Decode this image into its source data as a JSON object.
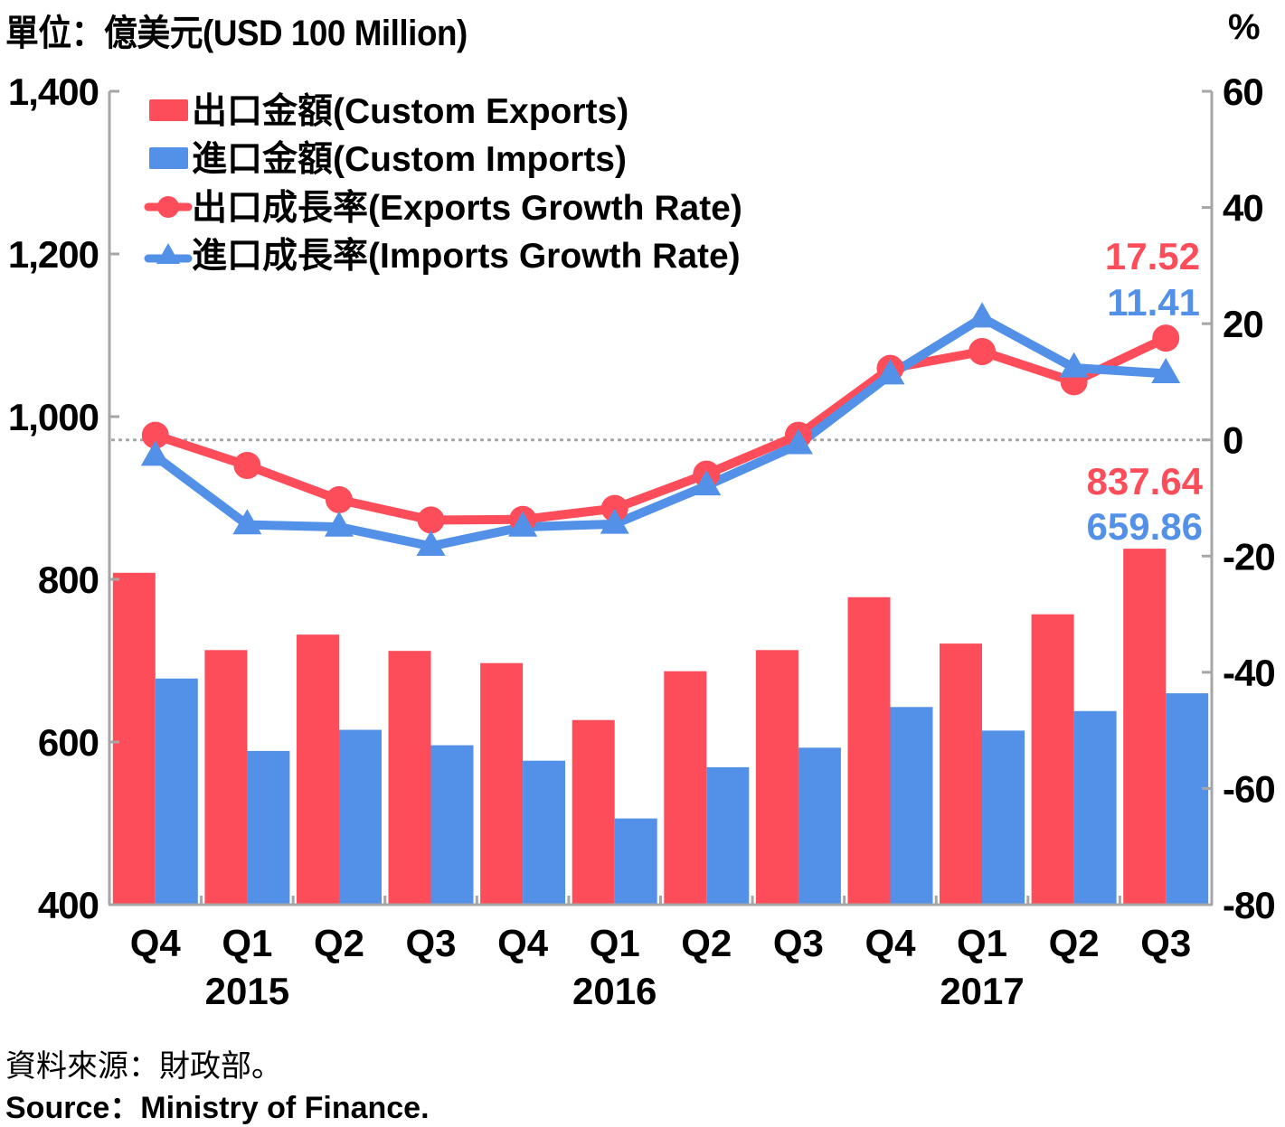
{
  "header": {
    "unit_left": "單位：億美元(USD 100 Million)",
    "unit_right": "%"
  },
  "footer": {
    "source_zh": "資料來源：財政部。",
    "source_en": "Source：Ministry of Finance."
  },
  "colors": {
    "exports": "#fe4d5a",
    "imports": "#5391e8",
    "axis": "#a6a6a6",
    "zero_line": "#a6a6a6"
  },
  "chart_data": {
    "type": "bar+line",
    "title": "",
    "categories": [
      "Q4",
      "Q1",
      "Q2",
      "Q3",
      "Q4",
      "Q1",
      "Q2",
      "Q3",
      "Q4",
      "Q1",
      "Q2",
      "Q3"
    ],
    "year_labels": [
      {
        "label": "2015",
        "category_index": 1
      },
      {
        "label": "2016",
        "category_index": 5
      },
      {
        "label": "2017",
        "category_index": 9
      }
    ],
    "left_axis": {
      "label": "單位：億美元(USD 100 Million)",
      "ylim": [
        400,
        1400
      ],
      "ticks": [
        400,
        600,
        800,
        1000,
        1200,
        1400
      ],
      "tick_labels": [
        "400",
        "600",
        "800",
        "1,000",
        "1,200",
        "1,400"
      ]
    },
    "right_axis": {
      "label": "%",
      "ylim": [
        -80,
        60
      ],
      "ticks": [
        -80,
        -60,
        -40,
        -20,
        0,
        20,
        40,
        60
      ],
      "tick_labels": [
        "-80",
        "-60",
        "-40",
        "-20",
        "0",
        "20",
        "40",
        "60"
      ]
    },
    "zero_line": {
      "axis": "right",
      "value": 0,
      "style": "dotted"
    },
    "series": [
      {
        "name": "出口金額(Custom Exports)",
        "kind": "bar",
        "axis": "left",
        "color": "#fe4d5a",
        "values": [
          808,
          713,
          732,
          712,
          697,
          627,
          687,
          713,
          778,
          721,
          757,
          837.64
        ]
      },
      {
        "name": "進口金額(Custom Imports)",
        "kind": "bar",
        "axis": "left",
        "color": "#5391e8",
        "values": [
          678,
          589,
          615,
          596,
          577,
          506,
          569,
          593,
          643,
          614,
          638,
          659.86
        ]
      },
      {
        "name": "出口成長率(Exports Growth Rate)",
        "kind": "line",
        "marker": "circle",
        "axis": "right",
        "color": "#fe4d5a",
        "values": [
          0.8,
          -4.4,
          -10.3,
          -13.8,
          -13.7,
          -11.8,
          -5.9,
          0.8,
          12.3,
          15.2,
          10.0,
          17.52
        ]
      },
      {
        "name": "進口成長率(Imports Growth Rate)",
        "kind": "line",
        "marker": "triangle",
        "axis": "right",
        "color": "#5391e8",
        "values": [
          -2.8,
          -14.6,
          -15.0,
          -18.3,
          -15.0,
          -14.5,
          -7.9,
          -0.8,
          11.2,
          21.0,
          12.4,
          11.41
        ]
      }
    ],
    "annotations": [
      {
        "text": "17.52",
        "series": "出口成長率(Exports Growth Rate)",
        "category_index": 11,
        "color": "#fe4d5a"
      },
      {
        "text": "11.41",
        "series": "進口成長率(Imports Growth Rate)",
        "category_index": 11,
        "color": "#5391e8"
      },
      {
        "text": "837.64",
        "series": "出口金額(Custom Exports)",
        "category_index": 11,
        "color": "#fe4d5a"
      },
      {
        "text": "659.86",
        "series": "進口金額(Custom Imports)",
        "category_index": 11,
        "color": "#5391e8"
      }
    ],
    "legend": {
      "placement": "top-left",
      "entries": [
        {
          "label": "出口金額(Custom Exports)",
          "symbol": "square",
          "color": "#fe4d5a"
        },
        {
          "label": "進口金額(Custom Imports)",
          "symbol": "square",
          "color": "#5391e8"
        },
        {
          "label": "出口成長率(Exports Growth Rate)",
          "symbol": "line-circle",
          "color": "#fe4d5a"
        },
        {
          "label": "進口成長率(Imports Growth Rate)",
          "symbol": "line-triangle",
          "color": "#5391e8"
        }
      ]
    },
    "grid": false
  }
}
